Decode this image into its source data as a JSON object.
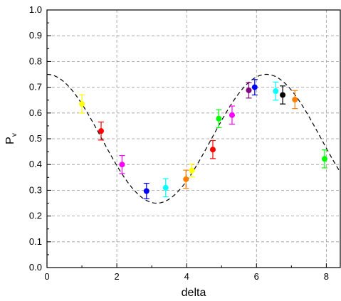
{
  "chart_data": {
    "type": "scatter",
    "xlabel": "delta",
    "ylabel": {
      "main": "P",
      "subscript": "v"
    },
    "xlim": [
      0,
      8.4
    ],
    "ylim": [
      0,
      1.0
    ],
    "x_ticks": [
      "0",
      "2",
      "4",
      "6",
      "8"
    ],
    "y_ticks": [
      "0.0",
      "0.1",
      "0.2",
      "0.3",
      "0.4",
      "0.5",
      "0.6",
      "0.7",
      "0.8",
      "0.9",
      "1.0"
    ],
    "grid": "dashed",
    "series": [
      {
        "type": "scatter",
        "points": [
          {
            "x": 1.0,
            "y": 0.635,
            "err": 0.035,
            "color": "#ffff00"
          },
          {
            "x": 1.55,
            "y": 0.53,
            "err": 0.035,
            "color": "#ff0000"
          },
          {
            "x": 2.15,
            "y": 0.4,
            "err": 0.035,
            "color": "#ff00ff"
          },
          {
            "x": 2.85,
            "y": 0.297,
            "err": 0.03,
            "color": "#0000ff"
          },
          {
            "x": 3.4,
            "y": 0.31,
            "err": 0.035,
            "color": "#00ffff"
          },
          {
            "x": 3.98,
            "y": 0.343,
            "err": 0.035,
            "color": "#ff8000"
          },
          {
            "x": 4.15,
            "y": 0.377,
            "err": 0.025,
            "color": "#ffff00"
          },
          {
            "x": 4.75,
            "y": 0.458,
            "err": 0.035,
            "color": "#ff0000"
          },
          {
            "x": 4.92,
            "y": 0.578,
            "err": 0.035,
            "color": "#00ff00"
          },
          {
            "x": 5.3,
            "y": 0.592,
            "err": 0.035,
            "color": "#ff00ff"
          },
          {
            "x": 5.78,
            "y": 0.688,
            "err": 0.03,
            "color": "#800080"
          },
          {
            "x": 5.95,
            "y": 0.7,
            "err": 0.03,
            "color": "#0000ff"
          },
          {
            "x": 6.55,
            "y": 0.685,
            "err": 0.035,
            "color": "#00ffff"
          },
          {
            "x": 6.75,
            "y": 0.67,
            "err": 0.035,
            "color": "#000000"
          },
          {
            "x": 7.1,
            "y": 0.652,
            "err": 0.035,
            "color": "#ff8000"
          },
          {
            "x": 7.95,
            "y": 0.422,
            "err": 0.035,
            "color": "#00ff00"
          }
        ]
      },
      {
        "type": "line",
        "style": "dashed",
        "color": "#000000",
        "function": "0.5 + 0.25*cos(delta)"
      }
    ]
  }
}
